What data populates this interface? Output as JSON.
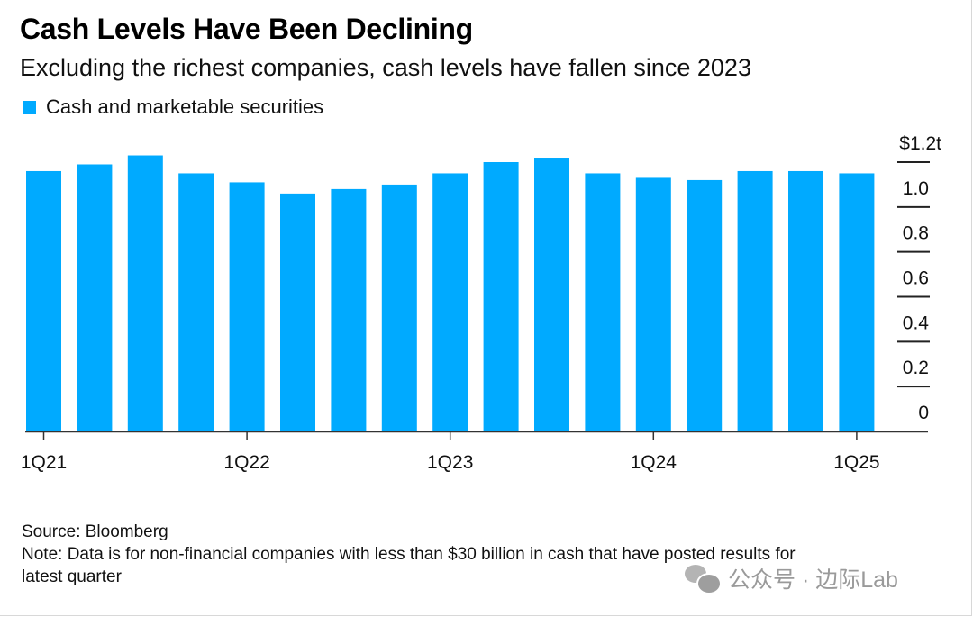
{
  "header": {
    "title": "Cash Levels Have Been Declining",
    "subtitle": "Excluding the richest companies, cash levels have fallen since 2023"
  },
  "legend": {
    "label": "Cash and marketable securities",
    "color": "#00AAFF"
  },
  "chart_data": {
    "type": "bar",
    "title": "Cash Levels Have Been Declining",
    "subtitle": "Excluding the richest companies, cash levels have fallen since 2023",
    "xlabel": "",
    "ylabel": "",
    "y_unit": "$ trillion",
    "ylim": [
      0,
      1.2
    ],
    "y_ticks": [
      0,
      0.2,
      0.4,
      0.6,
      0.8,
      1.0,
      1.2
    ],
    "y_tick_labels": [
      "0",
      "0.2",
      "0.4",
      "0.6",
      "0.8",
      "1.0",
      "$1.2t"
    ],
    "y_axis_position": "right",
    "grid": false,
    "legend_position": "top-left",
    "categories": [
      "1Q21",
      "2Q21",
      "3Q21",
      "4Q21",
      "1Q22",
      "2Q22",
      "3Q22",
      "4Q22",
      "1Q23",
      "2Q23",
      "3Q23",
      "4Q23",
      "1Q24",
      "2Q24",
      "3Q24",
      "4Q24",
      "1Q25"
    ],
    "x_tick_labels": [
      {
        "category": "1Q21",
        "label": "1Q21"
      },
      {
        "category": "1Q22",
        "label": "1Q22"
      },
      {
        "category": "1Q23",
        "label": "1Q23"
      },
      {
        "category": "1Q24",
        "label": "1Q24"
      },
      {
        "category": "1Q25",
        "label": "1Q25"
      }
    ],
    "series": [
      {
        "name": "Cash and marketable securities",
        "color": "#00AAFF",
        "values": [
          1.16,
          1.19,
          1.23,
          1.15,
          1.11,
          1.06,
          1.08,
          1.1,
          1.15,
          1.2,
          1.22,
          1.15,
          1.13,
          1.12,
          1.16,
          1.16,
          1.15
        ]
      }
    ]
  },
  "footer": {
    "source": "Source: Bloomberg",
    "note_line1": "Note: Data is for non-financial companies with less than $30 billion in cash that have posted results for",
    "note_line2": "latest quarter"
  },
  "watermark": {
    "text": "公众号 · 边际Lab",
    "icon": "wechat-icon"
  }
}
